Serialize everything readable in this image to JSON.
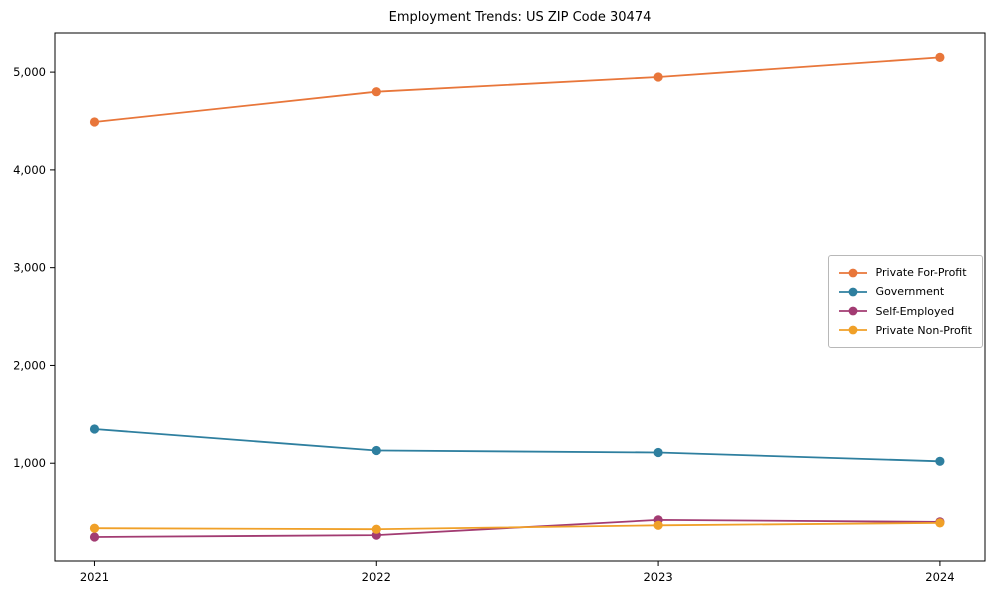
{
  "title": "Employment Trends: US ZIP Code 30474",
  "chart_data": {
    "type": "line",
    "title": "Employment Trends: US ZIP Code 30474",
    "xlabel": "",
    "ylabel": "",
    "x": [
      2021,
      2022,
      2023,
      2024
    ],
    "series": [
      {
        "name": "Private For-Profit",
        "color": "#e8763a",
        "values": [
          4490,
          4800,
          4950,
          5150
        ]
      },
      {
        "name": "Government",
        "color": "#2e7f9f",
        "values": [
          1350,
          1130,
          1110,
          1020
        ]
      },
      {
        "name": "Self-Employed",
        "color": "#a23b72",
        "values": [
          245,
          265,
          420,
          400
        ]
      },
      {
        "name": "Private Non-Profit",
        "color": "#f0a028",
        "values": [
          335,
          325,
          365,
          390
        ]
      }
    ],
    "marker": "o",
    "grid": false,
    "legend_position": "center right",
    "xlim": [
      2020.86,
      2024.16
    ],
    "ylim": [
      0,
      5400
    ],
    "xticks": [
      2021,
      2022,
      2023,
      2024
    ],
    "xtick_labels": [
      "2021",
      "2022",
      "2023",
      "2024"
    ],
    "yticks": [
      1000,
      2000,
      3000,
      4000,
      5000
    ],
    "ytick_labels": [
      "1,000",
      "2,000",
      "3,000",
      "4,000",
      "5,000"
    ],
    "axis_color": "#000000",
    "background_color": "#ffffff"
  }
}
